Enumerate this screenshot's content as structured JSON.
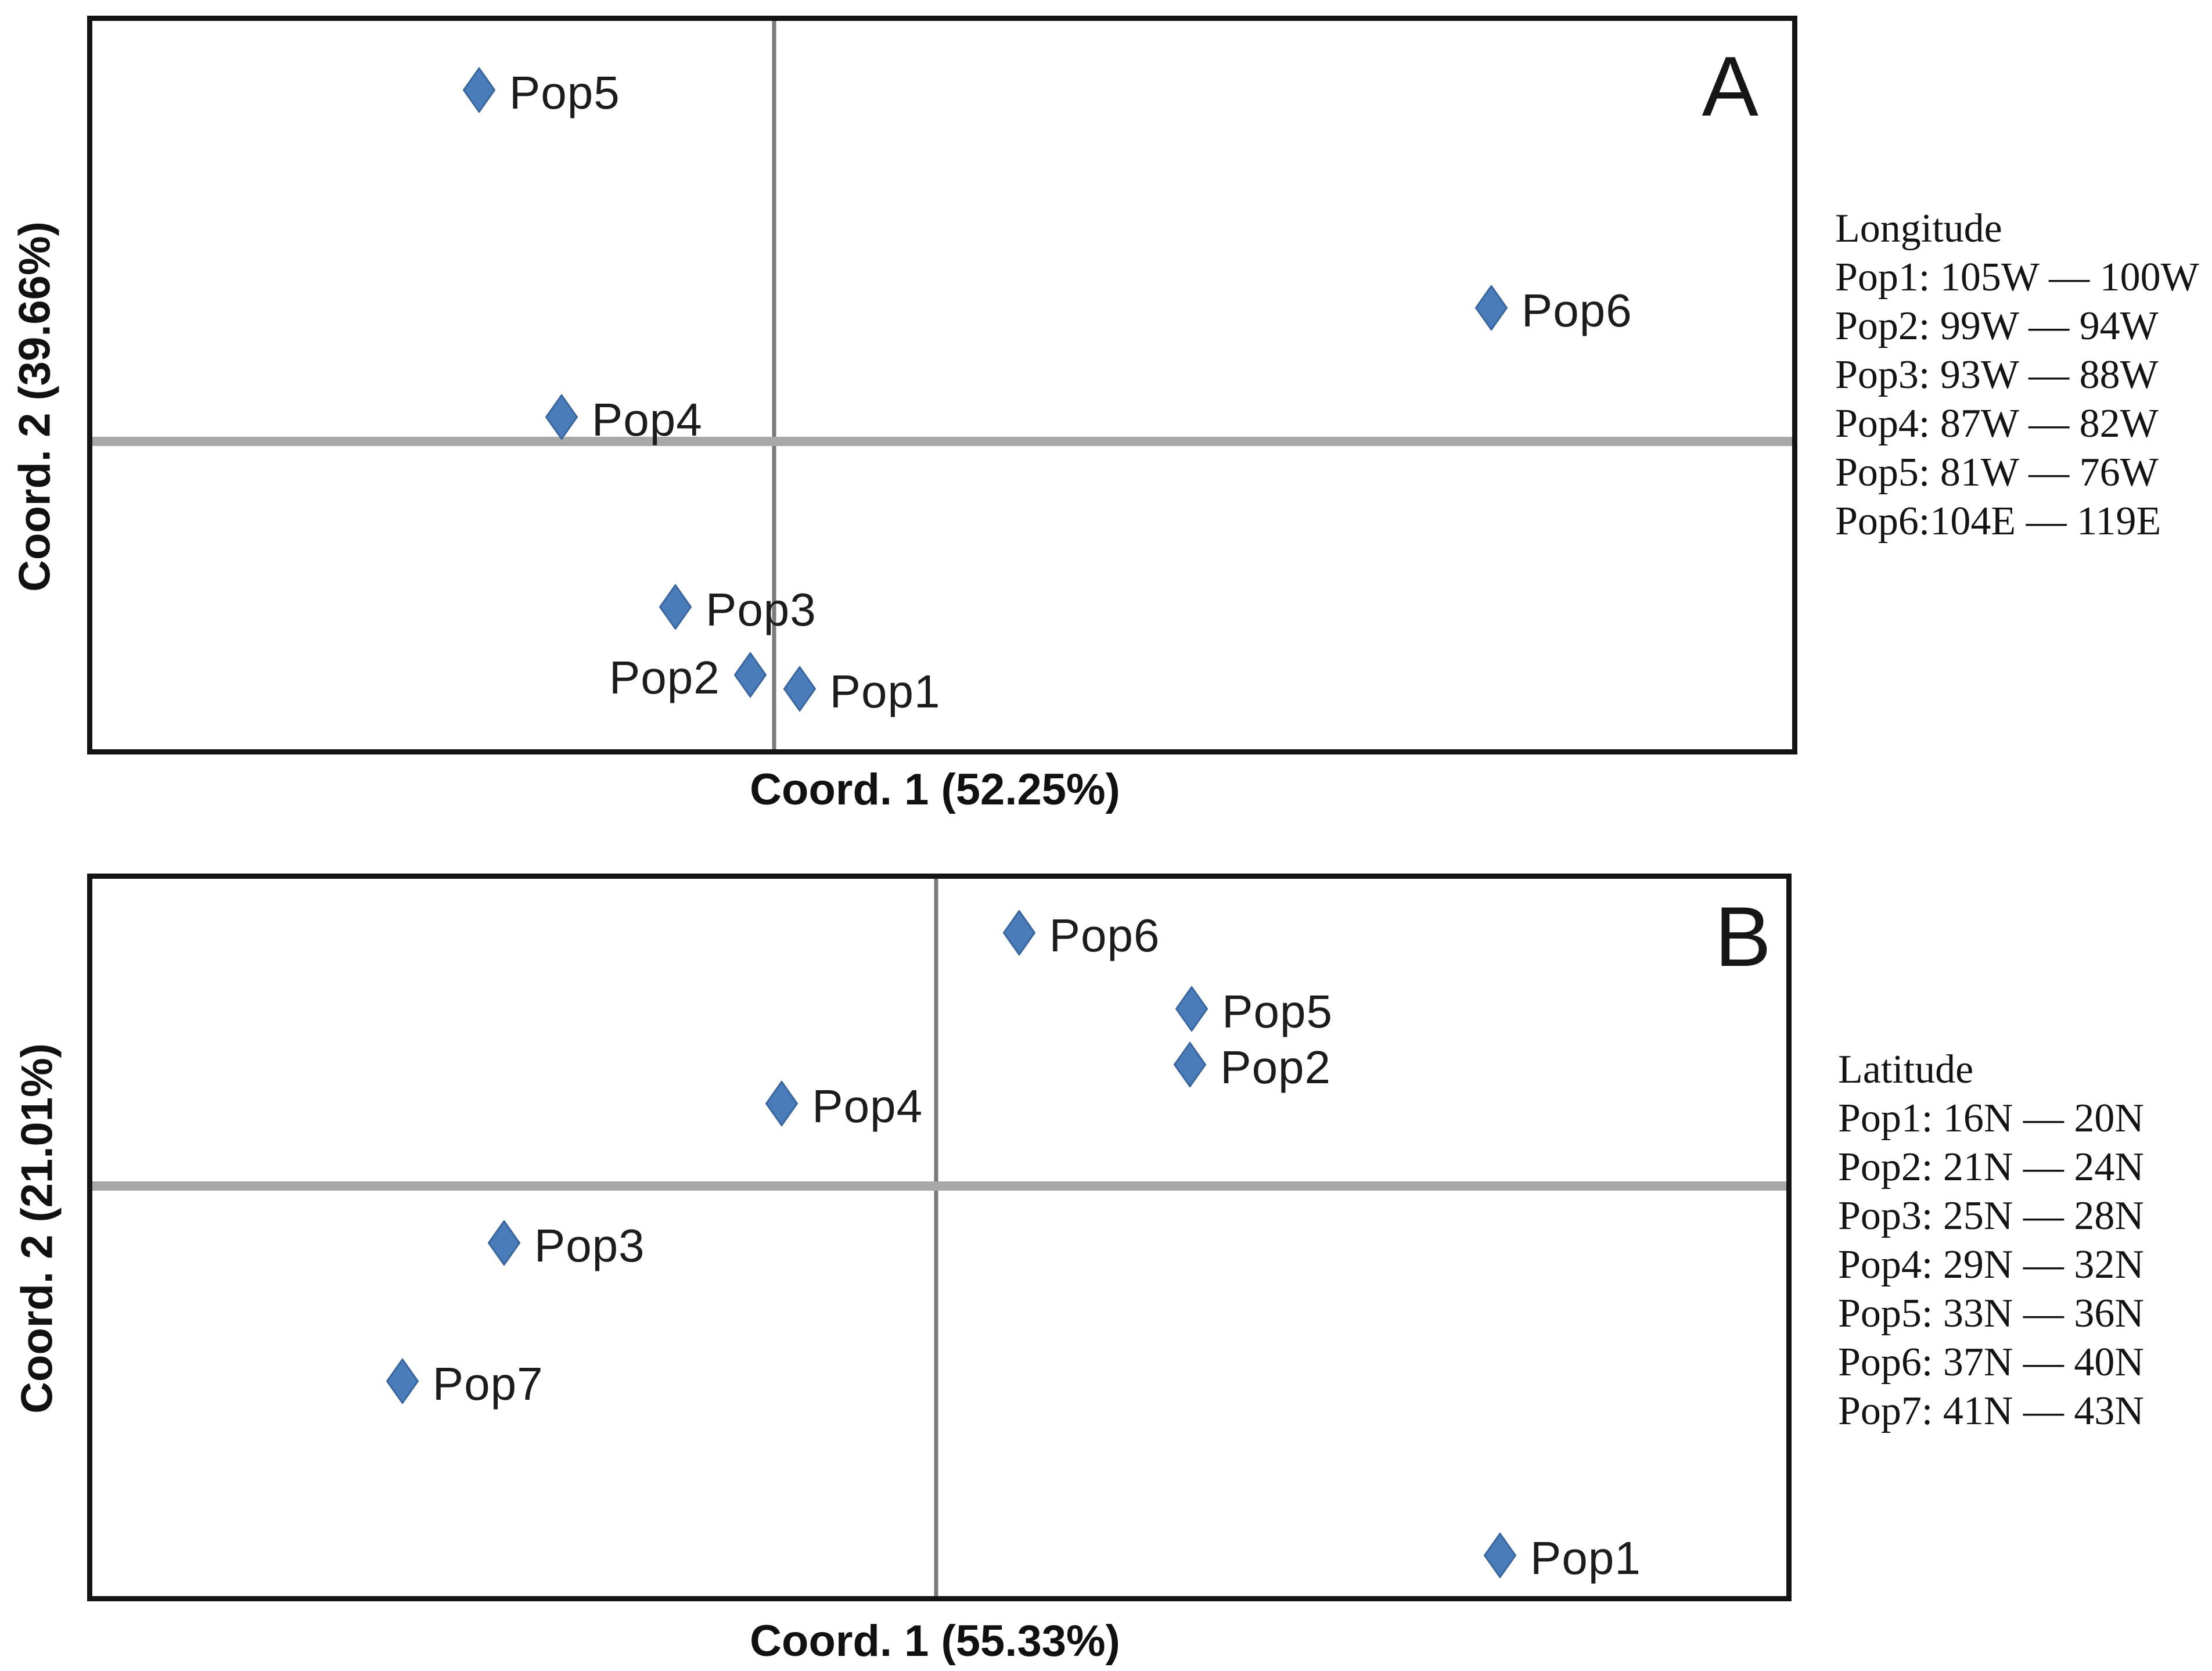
{
  "figure": {
    "background": "#ffffff",
    "marker_color": "#4A7CBA",
    "marker_stroke": "#3A66A0",
    "divider_v_color": "#7a7a7a",
    "divider_h_color": "#a8a8a8",
    "frame_color": "#141414"
  },
  "chart_data": [
    {
      "type": "scatter",
      "panel_letter": "A",
      "xlabel": "Coord. 1 (52.25%)",
      "ylabel": "Coord. 2 (39.66%)",
      "axes_note": "no numeric ticks; point coords are % of plot interior from top-left",
      "divider_x_pct": 40.1,
      "divider_y_pct": 57.7,
      "points": [
        {
          "name": "Pop5",
          "x_pct": 22.75,
          "y_pct": 9.5,
          "label_side": "right"
        },
        {
          "name": "Pop6",
          "x_pct": 82.3,
          "y_pct": 39.4,
          "label_side": "right"
        },
        {
          "name": "Pop4",
          "x_pct": 27.6,
          "y_pct": 54.4,
          "label_side": "right"
        },
        {
          "name": "Pop3",
          "x_pct": 34.3,
          "y_pct": 80.5,
          "label_side": "right"
        },
        {
          "name": "Pop2",
          "x_pct": 38.7,
          "y_pct": 89.8,
          "label_side": "left"
        },
        {
          "name": "Pop1",
          "x_pct": 41.6,
          "y_pct": 91.7,
          "label_side": "right"
        }
      ],
      "legend": {
        "title": "Longitude",
        "entries": [
          "Pop1: 105W — 100W",
          "Pop2: 99W — 94W",
          "Pop3: 93W — 88W",
          "Pop4: 87W — 82W",
          "Pop5: 81W — 76W",
          "Pop6:104E — 119E"
        ]
      }
    },
    {
      "type": "scatter",
      "panel_letter": "B",
      "xlabel": "Coord. 1 (55.33%)",
      "ylabel": "Coord. 2 (21.01%)",
      "axes_note": "no numeric ticks; point coords are % of plot interior from top-left",
      "divider_x_pct": 49.8,
      "divider_y_pct": 42.8,
      "points": [
        {
          "name": "Pop6",
          "x_pct": 54.7,
          "y_pct": 7.5,
          "label_side": "right"
        },
        {
          "name": "Pop5",
          "x_pct": 64.9,
          "y_pct": 18.1,
          "label_side": "right"
        },
        {
          "name": "Pop2",
          "x_pct": 64.8,
          "y_pct": 25.9,
          "label_side": "right"
        },
        {
          "name": "Pop4",
          "x_pct": 40.7,
          "y_pct": 31.3,
          "label_side": "right"
        },
        {
          "name": "Pop3",
          "x_pct": 24.3,
          "y_pct": 50.8,
          "label_side": "right"
        },
        {
          "name": "Pop7",
          "x_pct": 18.3,
          "y_pct": 70.0,
          "label_side": "right"
        },
        {
          "name": "Pop1",
          "x_pct": 83.1,
          "y_pct": 94.3,
          "label_side": "right"
        }
      ],
      "legend": {
        "title": "Latitude",
        "entries": [
          "Pop1: 16N — 20N",
          "Pop2: 21N — 24N",
          "Pop3: 25N — 28N",
          "Pop4: 29N — 32N",
          "Pop5: 33N — 36N",
          "Pop6: 37N — 40N",
          "Pop7: 41N — 43N"
        ]
      }
    }
  ]
}
